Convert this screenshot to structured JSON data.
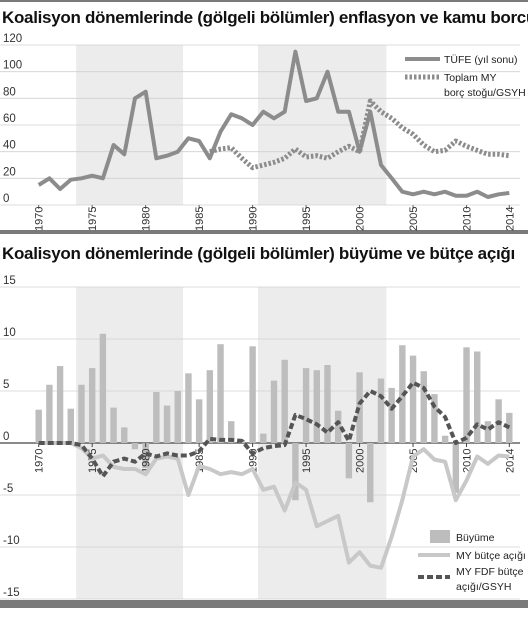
{
  "chart_data": [
    {
      "type": "line",
      "title": "Koalisyon dönemlerinde (gölgeli bölümler) enflasyon ve kamu borcu",
      "xlabel": "",
      "ylabel": "",
      "xlim": [
        1969,
        2015
      ],
      "ylim": [
        0,
        120
      ],
      "yticks": [
        "0",
        "20",
        "40",
        "60",
        "80",
        "100",
        "120"
      ],
      "xticks": [
        "1970",
        "1975",
        "1980",
        "1985",
        "1990",
        "1995",
        "2000",
        "2005",
        "2010",
        "2014"
      ],
      "shaded_periods": [
        [
          1974,
          1983
        ],
        [
          1991,
          2002
        ]
      ],
      "grid": "horizontal",
      "legend_position": "top-right",
      "colors": {
        "tufe": "#8c8c8c",
        "borc": "#8c8c8c",
        "shade": "#ececec"
      },
      "series": [
        {
          "name": "TÜFE (yıl sonu)",
          "style": "solid",
          "x": [
            1970,
            1971,
            1972,
            1973,
            1974,
            1975,
            1976,
            1977,
            1978,
            1979,
            1980,
            1981,
            1982,
            1983,
            1984,
            1985,
            1986,
            1987,
            1988,
            1989,
            1990,
            1991,
            1992,
            1993,
            1994,
            1995,
            1996,
            1997,
            1998,
            1999,
            2000,
            2001,
            2002,
            2003,
            2004,
            2005,
            2006,
            2007,
            2008,
            2009,
            2010,
            2011,
            2012,
            2013,
            2014
          ],
          "values": [
            15,
            20,
            12,
            19,
            20,
            22,
            20,
            45,
            38,
            80,
            85,
            35,
            37,
            40,
            50,
            48,
            35,
            55,
            68,
            65,
            60,
            70,
            65,
            70,
            115,
            78,
            80,
            100,
            70,
            70,
            40,
            70,
            30,
            20,
            10,
            8,
            10,
            8,
            10,
            7,
            7,
            10,
            6,
            8,
            9
          ]
        },
        {
          "name": "Toplam MY borç stoğu/GSYH",
          "style": "dotted",
          "x": [
            1986,
            1987,
            1988,
            1989,
            1990,
            1991,
            1992,
            1993,
            1994,
            1995,
            1996,
            1997,
            1998,
            1999,
            2000,
            2001,
            2002,
            2003,
            2004,
            2005,
            2006,
            2007,
            2008,
            2009,
            2010,
            2011,
            2012,
            2013,
            2014
          ],
          "values": [
            40,
            42,
            43,
            35,
            28,
            30,
            32,
            35,
            42,
            36,
            37,
            35,
            40,
            44,
            40,
            78,
            70,
            65,
            58,
            53,
            45,
            40,
            41,
            48,
            44,
            41,
            38,
            38,
            37
          ]
        }
      ]
    },
    {
      "type": "bar",
      "title": "Koalisyon dönemlerinde (gölgeli bölümler) büyüme ve bütçe açığı",
      "xlabel": "",
      "ylabel": "",
      "xlim": [
        1969,
        2015
      ],
      "ylim": [
        -15,
        15
      ],
      "yticks": [
        "15",
        "10",
        "5",
        "0",
        "-5",
        "-10",
        "-15"
      ],
      "xticks": [
        "1970",
        "1975",
        "1980",
        "1985",
        "1990",
        "1995",
        "2000",
        "2005",
        "2010",
        "2014"
      ],
      "shaded_periods": [
        [
          1974,
          1983
        ],
        [
          1991,
          2002
        ]
      ],
      "grid": "horizontal",
      "legend_position": "bottom-right",
      "colors": {
        "bars": "#bdbdbd",
        "deficit": "#c8c8c8",
        "fdf": "#555555",
        "shade": "#ececec"
      },
      "series": [
        {
          "name": "Büyüme",
          "style": "bar",
          "x": [
            1970,
            1971,
            1972,
            1973,
            1974,
            1975,
            1976,
            1977,
            1978,
            1979,
            1980,
            1981,
            1982,
            1983,
            1984,
            1985,
            1986,
            1987,
            1988,
            1989,
            1990,
            1991,
            1992,
            1993,
            1994,
            1995,
            1996,
            1997,
            1998,
            1999,
            2000,
            2001,
            2002,
            2003,
            2004,
            2005,
            2006,
            2007,
            2008,
            2009,
            2010,
            2011,
            2012,
            2013,
            2014
          ],
          "values": [
            3.2,
            5.6,
            7.4,
            3.3,
            5.6,
            7.2,
            10.5,
            3.4,
            1.5,
            -0.6,
            -2.4,
            4.9,
            3.6,
            5.0,
            6.7,
            4.2,
            7.0,
            9.5,
            2.1,
            0.3,
            9.3,
            0.9,
            6.0,
            8.0,
            -5.5,
            7.2,
            7.0,
            7.5,
            3.1,
            -3.4,
            6.8,
            -5.7,
            6.2,
            5.3,
            9.4,
            8.4,
            6.9,
            4.7,
            0.7,
            -4.8,
            9.2,
            8.8,
            2.1,
            4.2,
            2.9
          ]
        },
        {
          "name": "MY bütçe açığı",
          "style": "line",
          "x": [
            1970,
            1971,
            1972,
            1973,
            1974,
            1975,
            1976,
            1977,
            1978,
            1979,
            1980,
            1981,
            1982,
            1983,
            1984,
            1985,
            1986,
            1987,
            1988,
            1989,
            1990,
            1991,
            1992,
            1993,
            1994,
            1995,
            1996,
            1997,
            1998,
            1999,
            2000,
            2001,
            2002,
            2003,
            2004,
            2005,
            2006,
            2007,
            2008,
            2009,
            2010,
            2011,
            2012,
            2013,
            2014
          ],
          "values": [
            0,
            0,
            0,
            0,
            -0.5,
            -1.5,
            -1.2,
            -2.3,
            -2.5,
            -2.5,
            -3.0,
            -1.5,
            -1.3,
            -1.5,
            -5.0,
            -2.2,
            -2.5,
            -3.0,
            -2.8,
            -3.0,
            -2.5,
            -4.5,
            -4.2,
            -6.5,
            -3.8,
            -4.5,
            -8.0,
            -7.5,
            -7.0,
            -11.5,
            -10.5,
            -11.8,
            -12.0,
            -9.0,
            -5.5,
            -1.3,
            -0.6,
            -1.6,
            -1.8,
            -5.5,
            -3.6,
            -1.3,
            -2.0,
            -1.2,
            -1.3
          ]
        },
        {
          "name": "MY FDF bütçe açığı/GSYH",
          "style": "dashed",
          "x": [
            1970,
            1971,
            1972,
            1973,
            1974,
            1975,
            1976,
            1977,
            1978,
            1979,
            1980,
            1981,
            1982,
            1983,
            1984,
            1985,
            1986,
            1987,
            1988,
            1989,
            1990,
            1991,
            1992,
            1993,
            1994,
            1995,
            1996,
            1997,
            1998,
            1999,
            2000,
            2001,
            2002,
            2003,
            2004,
            2005,
            2006,
            2007,
            2008,
            2009,
            2010,
            2011,
            2012,
            2013,
            2014
          ],
          "values": [
            0,
            0,
            0,
            0,
            -0.2,
            -1.5,
            -3.2,
            -1.8,
            -1.5,
            -1.8,
            -1.0,
            -1.3,
            -1.0,
            -1.2,
            -1.2,
            -0.8,
            0.4,
            0.3,
            0.3,
            0.2,
            -1.0,
            -0.5,
            -0.3,
            -0.2,
            2.7,
            2.3,
            1.8,
            1.0,
            2.0,
            0.2,
            3.8,
            5.0,
            4.5,
            3.3,
            4.5,
            5.8,
            5.3,
            3.5,
            2.5,
            0.0,
            0.5,
            1.8,
            1.3,
            2.0,
            1.5
          ]
        }
      ]
    }
  ]
}
